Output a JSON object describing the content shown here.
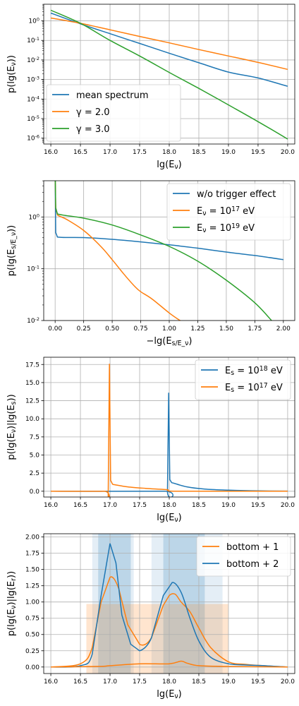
{
  "chart_data": [
    {
      "type": "line",
      "xlabel": "lg(E_ν)",
      "ylabel": "p(lg(E_ν))",
      "xlim": [
        15.88,
        20.12
      ],
      "ylim_log": [
        -6.3,
        0.85
      ],
      "yscale": "log",
      "grid": true,
      "legend": "bottom-left",
      "xticks": [
        "16.0",
        "16.5",
        "17.0",
        "17.5",
        "18.0",
        "18.5",
        "19.0",
        "19.5",
        "20.0"
      ],
      "yticks": [
        "10^0",
        "10^-1",
        "10^-2",
        "10^-3",
        "10^-4",
        "10^-5",
        "10^-6"
      ],
      "series": [
        {
          "name": "mean spectrum",
          "color": "#1f77b4",
          "x": [
            16.0,
            16.5,
            17,
            17.5,
            18,
            18.5,
            19,
            19.5,
            20.0
          ],
          "y": [
            2.5,
            0.7,
            0.22,
            0.07,
            0.022,
            0.0072,
            0.0024,
            0.0012,
            0.00045
          ]
        },
        {
          "name": "γ = 2.0",
          "color": "#ff7f0e",
          "x": [
            16.0,
            16.5,
            17,
            17.5,
            18,
            18.5,
            19,
            19.5,
            20.0
          ],
          "y": [
            1.4,
            0.75,
            0.35,
            0.16,
            0.075,
            0.034,
            0.016,
            0.0075,
            0.0033
          ]
        },
        {
          "name": "γ = 3.0",
          "color": "#2ca02c",
          "x": [
            16.0,
            16.5,
            17,
            17.5,
            18,
            18.5,
            19,
            19.5,
            20.0
          ],
          "y": [
            3.5,
            0.75,
            0.1,
            0.016,
            0.0023,
            0.00035,
            5e-05,
            7e-06,
            9e-07
          ]
        }
      ]
    },
    {
      "type": "line",
      "xlabel": "−lg(E_s/E_ν)",
      "ylabel": "p(lg(E_s/E_ν))",
      "xlim": [
        -0.1,
        2.1
      ],
      "ylim_log": [
        -2,
        0.7
      ],
      "yscale": "log",
      "grid": true,
      "legend": "top-right",
      "xticks": [
        "0.00",
        "0.25",
        "0.50",
        "0.75",
        "1.00",
        "1.25",
        "1.50",
        "1.75",
        "2.00"
      ],
      "yticks": [
        "10^0",
        "10^-1",
        "10^-2"
      ],
      "series": [
        {
          "name": "w/o trigger effect",
          "color": "#1f77b4",
          "x": [
            0.0,
            0.005,
            0.02,
            0.25,
            0.5,
            0.75,
            1.0,
            1.25,
            1.5,
            1.75,
            2.0
          ],
          "y": [
            8,
            0.5,
            0.41,
            0.4,
            0.37,
            0.33,
            0.29,
            0.25,
            0.21,
            0.18,
            0.15
          ]
        },
        {
          "name": "E_ν = 10^17 eV",
          "color": "#ff7f0e",
          "x": [
            0.0,
            0.005,
            0.02,
            0.1,
            0.25,
            0.4,
            0.5,
            0.6,
            0.7,
            0.75,
            0.85,
            1.0,
            1.1
          ],
          "y": [
            8,
            1.5,
            1.1,
            0.9,
            0.55,
            0.27,
            0.15,
            0.08,
            0.045,
            0.036,
            0.026,
            0.014,
            0.0098
          ]
        },
        {
          "name": "E_ν = 10^19 eV",
          "color": "#2ca02c",
          "x": [
            0.0,
            0.005,
            0.02,
            0.25,
            0.5,
            0.75,
            1.0,
            1.25,
            1.5,
            1.75,
            1.9
          ],
          "y": [
            8,
            1.5,
            1.15,
            0.95,
            0.7,
            0.45,
            0.27,
            0.14,
            0.06,
            0.022,
            0.0098
          ]
        }
      ]
    },
    {
      "type": "line",
      "xlabel": "lg(E_ν)",
      "ylabel": "p(lg(E_ν)|lg(E_s))",
      "xlim": [
        15.88,
        20.12
      ],
      "ylim": [
        -0.8,
        18.5
      ],
      "grid": true,
      "legend": "top-right",
      "xticks": [
        "16.0",
        "16.5",
        "17.0",
        "17.5",
        "18.0",
        "18.5",
        "19.0",
        "19.5",
        "20.0"
      ],
      "yticks": [
        "0.0",
        "2.5",
        "5.0",
        "7.5",
        "10.0",
        "12.5",
        "15.0",
        "17.5"
      ],
      "series": [
        {
          "name": "E_s = 10^18 eV",
          "color": "#1f77b4",
          "x": [
            16.0,
            17.9,
            17.97,
            17.99,
            18.01,
            18.04,
            18.08,
            18.3,
            18.6,
            19.0,
            19.5,
            20.0
          ],
          "y": [
            0,
            0,
            0.2,
            13.6,
            1.6,
            1.2,
            1.1,
            0.6,
            0.3,
            0.15,
            0.05,
            0.02
          ]
        },
        {
          "name": "E_s = 10^17 eV",
          "color": "#ff7f0e",
          "x": [
            16.0,
            16.9,
            16.97,
            16.99,
            17.01,
            17.04,
            17.08,
            17.3,
            17.6,
            17.9,
            17.98,
            18.02,
            18.5,
            19.0,
            20.0
          ],
          "y": [
            0,
            0,
            0.2,
            17.6,
            1.5,
            1.0,
            0.9,
            0.6,
            0.4,
            0.25,
            0.2,
            0.02,
            0.01,
            0,
            0
          ]
        }
      ]
    },
    {
      "type": "line",
      "xlabel": "lg(E_ν)",
      "ylabel": "p(lg(E_ν)|lg(E_r))",
      "xlim": [
        15.88,
        20.12
      ],
      "ylim": [
        -0.1,
        2.05
      ],
      "grid": true,
      "legend": "top-right",
      "xticks": [
        "16.0",
        "16.5",
        "17.0",
        "17.5",
        "18.0",
        "18.5",
        "19.0",
        "19.5",
        "20.0"
      ],
      "yticks": [
        "0.00",
        "0.25",
        "0.50",
        "0.75",
        "1.00",
        "1.25",
        "1.50",
        "1.75",
        "2.00"
      ],
      "bands": [
        {
          "color": "#1f77b4",
          "x0": 16.7,
          "x1": 17.4,
          "alpha": 0.12
        },
        {
          "color": "#1f77b4",
          "x0": 16.8,
          "x1": 17.35,
          "alpha": 0.2
        },
        {
          "color": "#1f77b4",
          "x0": 17.7,
          "x1": 18.9,
          "alpha": 0.12
        },
        {
          "color": "#1f77b4",
          "x0": 17.9,
          "x1": 18.6,
          "alpha": 0.2
        },
        {
          "color": "#ff7f0e",
          "x0": 16.6,
          "x1": 19.0,
          "top": 0.97,
          "alpha": 0.2
        }
      ],
      "series": [
        {
          "name": "bottom + 1",
          "color": "#ff7f0e",
          "x": [
            16.0,
            16.5,
            16.7,
            16.85,
            17.0,
            17.15,
            17.3,
            17.5,
            17.7,
            17.9,
            18.0,
            18.1,
            18.2,
            18.35,
            18.5,
            18.7,
            19.0,
            19.3,
            19.6,
            20.0
          ],
          "y": [
            0,
            0.05,
            0.3,
            1.0,
            1.38,
            1.2,
            0.65,
            0.35,
            0.45,
            0.95,
            1.1,
            1.12,
            1.0,
            0.85,
            0.6,
            0.3,
            0.08,
            0.04,
            0.02,
            0.0
          ]
        },
        {
          "name": "bottom + 2",
          "color": "#1f77b4",
          "x": [
            16.0,
            16.5,
            16.7,
            16.85,
            17.0,
            17.1,
            17.2,
            17.35,
            17.5,
            17.7,
            17.9,
            18.05,
            18.2,
            18.35,
            18.5,
            18.7,
            19.0,
            19.3,
            19.6,
            20.0
          ],
          "y": [
            0,
            0.02,
            0.2,
            1.1,
            1.9,
            1.6,
            0.8,
            0.35,
            0.25,
            0.45,
            1.1,
            1.3,
            1.15,
            0.75,
            0.4,
            0.15,
            0.05,
            0.03,
            0.02,
            0.0
          ]
        },
        {
          "name": "",
          "color": "#ff7f0e",
          "x": [
            16.0,
            16.8,
            17.0,
            17.5,
            18.0,
            18.2,
            18.3,
            18.5,
            19.0,
            20.0
          ],
          "y": [
            0,
            0.01,
            0.02,
            0.05,
            0.05,
            0.09,
            0.06,
            0.02,
            0.01,
            0.0
          ]
        }
      ]
    }
  ]
}
